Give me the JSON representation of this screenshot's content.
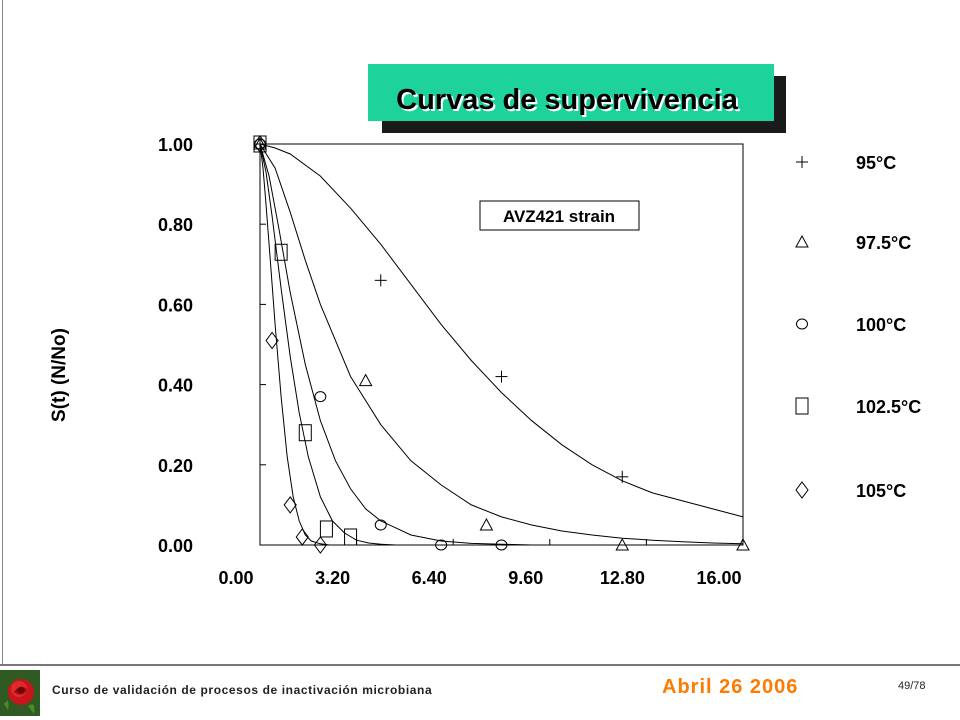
{
  "slide": {
    "title": "Curvas de supervivencia",
    "footer_course": "Curso de validación de procesos de inactivación microbiana",
    "footer_date": "Abril 26 2006",
    "page_number": "49/78",
    "date_color": "#ff7a00",
    "title_bg_color": "#1dd39b"
  },
  "chart_data": {
    "type": "scatter",
    "title": "",
    "annotation": "AVZ421 strain",
    "xlabel": "",
    "ylabel": "S(t) (N/No)",
    "xlim": [
      0,
      16.0
    ],
    "ylim": [
      0,
      1.0
    ],
    "x_ticks": [
      "0.00",
      "3.20",
      "6.40",
      "9.60",
      "12.80",
      "16.00"
    ],
    "y_ticks": [
      "0.00",
      "0.20",
      "0.40",
      "0.60",
      "0.80",
      "1.00"
    ],
    "legend_position": "right",
    "grid": false,
    "series": [
      {
        "name": "95°C",
        "marker": "plus",
        "points": [
          [
            0.0,
            1.0
          ],
          [
            4.0,
            0.66
          ],
          [
            8.0,
            0.42
          ],
          [
            12.0,
            0.17
          ]
        ],
        "fit": [
          [
            0.0,
            1.0
          ],
          [
            0.5,
            0.99
          ],
          [
            1.0,
            0.975
          ],
          [
            2.0,
            0.92
          ],
          [
            3.0,
            0.84
          ],
          [
            4.0,
            0.75
          ],
          [
            5.0,
            0.65
          ],
          [
            6.0,
            0.55
          ],
          [
            7.0,
            0.46
          ],
          [
            8.0,
            0.38
          ],
          [
            9.0,
            0.31
          ],
          [
            10.0,
            0.25
          ],
          [
            11.0,
            0.2
          ],
          [
            12.0,
            0.16
          ],
          [
            13.0,
            0.13
          ],
          [
            14.0,
            0.11
          ],
          [
            15.0,
            0.09
          ],
          [
            16.0,
            0.07
          ]
        ]
      },
      {
        "name": "97.5°C",
        "marker": "triangle",
        "points": [
          [
            0.0,
            1.0
          ],
          [
            3.5,
            0.41
          ],
          [
            7.5,
            0.05
          ],
          [
            12.0,
            0.0
          ],
          [
            16.0,
            0.0
          ]
        ],
        "fit": [
          [
            0.0,
            1.0
          ],
          [
            0.5,
            0.94
          ],
          [
            1.0,
            0.83
          ],
          [
            1.5,
            0.71
          ],
          [
            2.0,
            0.6
          ],
          [
            3.0,
            0.42
          ],
          [
            4.0,
            0.3
          ],
          [
            5.0,
            0.21
          ],
          [
            6.0,
            0.15
          ],
          [
            7.0,
            0.1
          ],
          [
            8.0,
            0.07
          ],
          [
            9.0,
            0.05
          ],
          [
            10.0,
            0.035
          ],
          [
            11.0,
            0.025
          ],
          [
            12.0,
            0.017
          ],
          [
            13.0,
            0.012
          ],
          [
            14.0,
            0.008
          ],
          [
            15.0,
            0.005
          ],
          [
            16.0,
            0.003
          ]
        ]
      },
      {
        "name": "100°C",
        "marker": "circle",
        "points": [
          [
            0.0,
            1.0
          ],
          [
            2.0,
            0.37
          ],
          [
            4.0,
            0.05
          ],
          [
            6.0,
            0.0
          ],
          [
            8.0,
            0.0
          ]
        ],
        "fit": [
          [
            0.0,
            1.0
          ],
          [
            0.3,
            0.92
          ],
          [
            0.6,
            0.8
          ],
          [
            1.0,
            0.63
          ],
          [
            1.5,
            0.45
          ],
          [
            2.0,
            0.31
          ],
          [
            2.5,
            0.21
          ],
          [
            3.0,
            0.14
          ],
          [
            3.5,
            0.09
          ],
          [
            4.0,
            0.06
          ],
          [
            5.0,
            0.025
          ],
          [
            6.0,
            0.01
          ],
          [
            7.0,
            0.004
          ],
          [
            8.0,
            0.002
          ],
          [
            9.0,
            0.0
          ]
        ]
      },
      {
        "name": "102.5°C",
        "marker": "square",
        "points": [
          [
            0.0,
            1.0
          ],
          [
            0.7,
            0.73
          ],
          [
            1.5,
            0.28
          ],
          [
            2.2,
            0.04
          ],
          [
            3.0,
            0.02
          ]
        ],
        "fit": [
          [
            0.0,
            1.0
          ],
          [
            0.2,
            0.93
          ],
          [
            0.4,
            0.82
          ],
          [
            0.7,
            0.64
          ],
          [
            1.0,
            0.47
          ],
          [
            1.3,
            0.33
          ],
          [
            1.6,
            0.22
          ],
          [
            2.0,
            0.12
          ],
          [
            2.4,
            0.06
          ],
          [
            2.8,
            0.03
          ],
          [
            3.2,
            0.012
          ],
          [
            3.6,
            0.005
          ],
          [
            4.0,
            0.002
          ],
          [
            4.5,
            0.0
          ]
        ]
      },
      {
        "name": "105°C",
        "marker": "diamond",
        "points": [
          [
            0.0,
            1.0
          ],
          [
            0.4,
            0.51
          ],
          [
            1.0,
            0.1
          ],
          [
            1.4,
            0.02
          ],
          [
            2.0,
            0.0
          ]
        ],
        "fit": [
          [
            0.0,
            1.0
          ],
          [
            0.1,
            0.94
          ],
          [
            0.2,
            0.85
          ],
          [
            0.35,
            0.7
          ],
          [
            0.5,
            0.55
          ],
          [
            0.7,
            0.37
          ],
          [
            0.9,
            0.22
          ],
          [
            1.1,
            0.12
          ],
          [
            1.3,
            0.06
          ],
          [
            1.5,
            0.025
          ],
          [
            1.7,
            0.01
          ],
          [
            2.0,
            0.003
          ],
          [
            2.3,
            0.0
          ]
        ]
      }
    ]
  }
}
